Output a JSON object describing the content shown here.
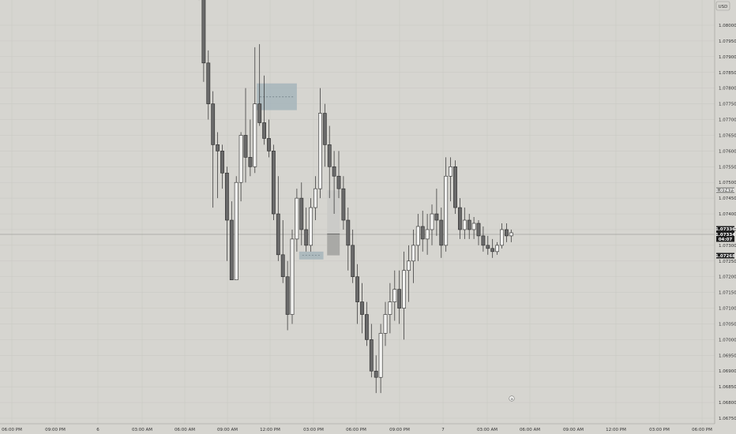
{
  "currency_label": "USD",
  "chart_data": {
    "type": "candlestick",
    "title": "",
    "xlabel": "",
    "ylabel": "",
    "ylim": [
      1.0673,
      1.081
    ],
    "grid": true,
    "y_ticks": [
      "1.08000",
      "1.07950",
      "1.07900",
      "1.07850",
      "1.07800",
      "1.07750",
      "1.07700",
      "1.07650",
      "1.07600",
      "1.07550",
      "1.07500",
      "1.07450",
      "1.07400",
      "1.07350",
      "1.07300",
      "1.07250",
      "1.07200",
      "1.07150",
      "1.07100",
      "1.07050",
      "1.07000",
      "1.06950",
      "1.06900",
      "1.06850",
      "1.06800",
      "1.06750"
    ],
    "x_ticks": [
      "06:00 PM",
      "09:00 PM",
      "6",
      "03:00 AM",
      "06:00 AM",
      "09:00 AM",
      "12:00 PM",
      "03:00 PM",
      "06:00 PM",
      "09:00 PM",
      "7",
      "03:00 AM",
      "06:00 AM",
      "09:00 AM",
      "12:00 PM",
      "03:00 PM",
      "06:00 PM"
    ],
    "price_labels": [
      {
        "value": "1.07475",
        "style": "light"
      },
      {
        "value": "1.07336",
        "style": "dark"
      },
      {
        "value": "1.07334",
        "style": "dark"
      },
      {
        "value": "04:07",
        "style": "dark"
      },
      {
        "value": "1.07268",
        "style": "dark"
      }
    ],
    "zones": [
      {
        "name": "supply-zone",
        "x_start": 12.4,
        "x_end": 21.0,
        "y_low": 1.0773,
        "y_high": 1.07815,
        "mid": 1.07772
      },
      {
        "name": "demand-zone",
        "x_start": 21.5,
        "x_end": 26.7,
        "y_low": 1.07255,
        "y_high": 1.0728,
        "mid": 1.07268
      }
    ],
    "position": {
      "x_start": 27.5,
      "x_end": 30.2,
      "entry": 1.07336,
      "target": 1.07475,
      "stop": 1.07268
    },
    "candles": [
      [
        1.0812,
        1.0812,
        1.0808,
        1.0809
      ],
      [
        1.0809,
        1.081,
        1.0782,
        1.0788
      ],
      [
        1.0788,
        1.0792,
        1.077,
        1.0775
      ],
      [
        1.0775,
        1.0779,
        1.0742,
        1.0762
      ],
      [
        1.0762,
        1.0766,
        1.0745,
        1.076
      ],
      [
        1.076,
        1.0762,
        1.0748,
        1.0753
      ],
      [
        1.0753,
        1.0755,
        1.0725,
        1.0738
      ],
      [
        1.0738,
        1.0744,
        1.0719,
        1.0719
      ],
      [
        1.0719,
        1.0752,
        1.0719,
        1.075
      ],
      [
        1.075,
        1.0766,
        1.0744,
        1.0765
      ],
      [
        1.0765,
        1.078,
        1.075,
        1.0758
      ],
      [
        1.0758,
        1.077,
        1.0752,
        1.0755
      ],
      [
        1.0755,
        1.0793,
        1.0753,
        1.0775
      ],
      [
        1.0775,
        1.0794,
        1.0768,
        1.0769
      ],
      [
        1.0769,
        1.0784,
        1.0762,
        1.0764
      ],
      [
        1.0764,
        1.077,
        1.0758,
        1.076
      ],
      [
        1.076,
        1.0762,
        1.0738,
        1.074
      ],
      [
        1.074,
        1.0752,
        1.0725,
        1.0727
      ],
      [
        1.0727,
        1.0738,
        1.0718,
        1.072
      ],
      [
        1.072,
        1.0725,
        1.0703,
        1.0708
      ],
      [
        1.0708,
        1.0735,
        1.0705,
        1.0732
      ],
      [
        1.0732,
        1.0748,
        1.0728,
        1.0745
      ],
      [
        1.0745,
        1.075,
        1.073,
        1.0735
      ],
      [
        1.0735,
        1.0742,
        1.0728,
        1.073
      ],
      [
        1.073,
        1.0745,
        1.0728,
        1.0742
      ],
      [
        1.0742,
        1.0752,
        1.0738,
        1.0748
      ],
      [
        1.0748,
        1.078,
        1.0745,
        1.0772
      ],
      [
        1.0772,
        1.0775,
        1.0755,
        1.0762
      ],
      [
        1.0762,
        1.0768,
        1.0745,
        1.0755
      ],
      [
        1.0755,
        1.076,
        1.074,
        1.0752
      ],
      [
        1.0752,
        1.076,
        1.0745,
        1.0748
      ],
      [
        1.0748,
        1.0752,
        1.0735,
        1.0738
      ],
      [
        1.0738,
        1.0742,
        1.0722,
        1.073
      ],
      [
        1.073,
        1.0735,
        1.0718,
        1.072
      ],
      [
        1.072,
        1.0724,
        1.0705,
        1.0712
      ],
      [
        1.0712,
        1.0718,
        1.0702,
        1.0708
      ],
      [
        1.0708,
        1.0712,
        1.0698,
        1.07
      ],
      [
        1.07,
        1.0705,
        1.0688,
        1.069
      ],
      [
        1.069,
        1.0695,
        1.0683,
        1.0688
      ],
      [
        1.0688,
        1.0705,
        1.0683,
        1.0702
      ],
      [
        1.0702,
        1.0712,
        1.0698,
        1.0708
      ],
      [
        1.0708,
        1.0718,
        1.0702,
        1.0712
      ],
      [
        1.0712,
        1.0722,
        1.0706,
        1.0716
      ],
      [
        1.0716,
        1.0722,
        1.0705,
        1.071
      ],
      [
        1.071,
        1.0728,
        1.07,
        1.0722
      ],
      [
        1.0722,
        1.073,
        1.0712,
        1.0725
      ],
      [
        1.0725,
        1.0735,
        1.0718,
        1.073
      ],
      [
        1.073,
        1.074,
        1.0725,
        1.0736
      ],
      [
        1.0736,
        1.0741,
        1.0728,
        1.0732
      ],
      [
        1.0732,
        1.074,
        1.0727,
        1.0735
      ],
      [
        1.0735,
        1.0743,
        1.073,
        1.074
      ],
      [
        1.074,
        1.0748,
        1.0733,
        1.0738
      ],
      [
        1.0738,
        1.0742,
        1.0726,
        1.073
      ],
      [
        1.073,
        1.0758,
        1.0728,
        1.0752
      ],
      [
        1.0752,
        1.0758,
        1.0744,
        1.0755
      ],
      [
        1.0755,
        1.0757,
        1.074,
        1.0742
      ],
      [
        1.0742,
        1.0745,
        1.0732,
        1.0735
      ],
      [
        1.0735,
        1.0742,
        1.0732,
        1.0738
      ],
      [
        1.0738,
        1.074,
        1.0732,
        1.0735
      ],
      [
        1.0735,
        1.0739,
        1.0732,
        1.0737
      ],
      [
        1.0737,
        1.0738,
        1.073,
        1.0733
      ],
      [
        1.0733,
        1.0736,
        1.0728,
        1.073
      ],
      [
        1.073,
        1.0733,
        1.0727,
        1.0729
      ],
      [
        1.0729,
        1.0732,
        1.0726,
        1.0728
      ],
      [
        1.0728,
        1.0731,
        1.0727,
        1.073
      ],
      [
        1.073,
        1.0737,
        1.0729,
        1.0735
      ],
      [
        1.0735,
        1.0737,
        1.0731,
        1.0733
      ],
      [
        1.0733,
        1.0735,
        1.0731,
        1.0734
      ]
    ]
  }
}
